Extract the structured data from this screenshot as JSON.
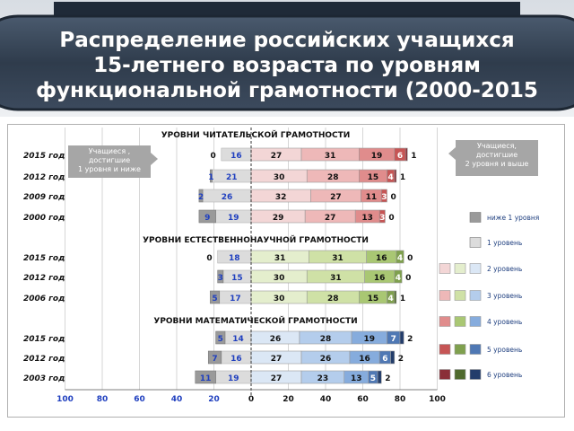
{
  "header": {
    "title_lines": [
      "Распределение российских учащихся",
      "15-летнего возраста по уровням",
      "функциональной грамотности (2000-2015"
    ]
  },
  "callouts": {
    "left": [
      "Учащиеся ,",
      "достигшие",
      "1 уровня  и ниже"
    ],
    "right": [
      "Учащиеся,",
      "достигшие",
      "2 уровня   и выше"
    ]
  },
  "chart_data": {
    "type": "bar",
    "orientation": "horizontal-diverging-stacked",
    "axis_ticks": [
      "100",
      "80",
      "60",
      "40",
      "20",
      "0",
      "20",
      "40",
      "60",
      "80",
      "100"
    ],
    "xlim": [
      -100,
      100
    ],
    "grid": true,
    "legend_position": "right",
    "legend": [
      {
        "label": "ниже 1 уровня",
        "colors": [
          "#9a9a9a"
        ]
      },
      {
        "label": "1 уровень",
        "colors": [
          "#dcdcdc"
        ]
      },
      {
        "label": "2 уровень",
        "colors": [
          "#f3d6d6",
          "#e4eecd",
          "#dbe7f5"
        ]
      },
      {
        "label": "3 уровень",
        "colors": [
          "#eeb8b8",
          "#cfe1a6",
          "#b4cdec"
        ]
      },
      {
        "label": "4 уровень",
        "colors": [
          "#e08c8c",
          "#a9c773",
          "#86acdd"
        ]
      },
      {
        "label": "5 уровень",
        "colors": [
          "#c65555",
          "#7fa04e",
          "#4f78b4"
        ]
      },
      {
        "label": "6 уровень",
        "colors": [
          "#8a2f38",
          "#4f6a2d",
          "#233d6b"
        ]
      }
    ],
    "colors": {
      "below1": "#9a9a9a",
      "level1": "#dcdcdc",
      "negative_label": "#1f3fbf",
      "positive_label": "#111111"
    },
    "groups": [
      {
        "title": "УРОВНИ ЧИТАТЕЛЬСКОЙ  ГРАМОТНОСТИ",
        "palette": [
          "#f3d6d6",
          "#eeb8b8",
          "#e08c8c",
          "#c65555",
          "#8a2f38"
        ],
        "rows": [
          {
            "year": "2015 год",
            "below1": 0,
            "level1": 16,
            "levels": [
              27,
              31,
              19,
              6,
              1
            ],
            "below1_label": "0",
            "level1_label": "16",
            "level_labels": [
              "27",
              "31",
              "19",
              "6",
              "1"
            ]
          },
          {
            "year": "2012 год",
            "below1": 1,
            "level1": 21,
            "levels": [
              30,
              28,
              15,
              4,
              1
            ],
            "below1_label": "1",
            "level1_label": "21",
            "level_labels": [
              "30",
              "28",
              "15",
              "4",
              "1"
            ]
          },
          {
            "year": "2009 год",
            "below1": 2,
            "level1": 26,
            "levels": [
              32,
              27,
              11,
              3,
              0
            ],
            "below1_label": "2",
            "level1_label": "26",
            "level_labels": [
              "32",
              "27",
              "11",
              "3",
              "0"
            ]
          },
          {
            "year": "2000 год",
            "below1": 9,
            "level1": 19,
            "levels": [
              29,
              27,
              13,
              3,
              0
            ],
            "below1_label": "9",
            "level1_label": "19",
            "level_labels": [
              "29",
              "27",
              "13",
              "3",
              "0"
            ]
          }
        ]
      },
      {
        "title": "УРОВНИ ЕСТЕСТВЕННОНАУЧНОЙ  ГРАМОТНОСТИ",
        "palette": [
          "#e4eecd",
          "#cfe1a6",
          "#a9c773",
          "#7fa04e",
          "#4f6a2d"
        ],
        "rows": [
          {
            "year": "2015 год",
            "below1": 0,
            "level1": 18,
            "levels": [
              31,
              31,
              16,
              4,
              0
            ],
            "below1_label": "0",
            "level1_label": "18",
            "level_labels": [
              "31",
              "31",
              "16",
              "4",
              "0"
            ]
          },
          {
            "year": "2012 год",
            "below1": 3,
            "level1": 15,
            "levels": [
              30,
              31,
              16,
              4,
              0
            ],
            "below1_label": "3",
            "level1_label": "15",
            "level_labels": [
              "30",
              "31",
              "16",
              "4",
              "0"
            ]
          },
          {
            "year": "2006 год",
            "below1": 5,
            "level1": 17,
            "levels": [
              30,
              28,
              15,
              4,
              1
            ],
            "below1_label": "5",
            "level1_label": "17",
            "level_labels": [
              "30",
              "28",
              "15",
              "4",
              "1"
            ]
          }
        ]
      },
      {
        "title": "УРОВНИ МАТЕМАТИЧЕСКОЙ  ГРАМОТНОСТИ",
        "palette": [
          "#dbe7f5",
          "#b4cdec",
          "#86acdd",
          "#4f78b4",
          "#233d6b"
        ],
        "rows": [
          {
            "year": "2015 год",
            "below1": 5,
            "level1": 14,
            "levels": [
              26,
              28,
              19,
              7,
              2
            ],
            "below1_label": "5",
            "level1_label": "14",
            "level_labels": [
              "26",
              "28",
              "19",
              "7",
              "2"
            ]
          },
          {
            "year": "2012 год",
            "below1": 7,
            "level1": 16,
            "levels": [
              27,
              26,
              16,
              6,
              2
            ],
            "below1_label": "7",
            "level1_label": "16",
            "level_labels": [
              "27",
              "26",
              "16",
              "6",
              "2"
            ]
          },
          {
            "year": "2003 год",
            "below1": 11,
            "level1": 19,
            "levels": [
              27,
              23,
              13,
              5,
              2
            ],
            "below1_label": "11",
            "level1_label": "19",
            "level_labels": [
              "27",
              "23",
              "13",
              "5",
              "2"
            ]
          }
        ]
      }
    ]
  }
}
